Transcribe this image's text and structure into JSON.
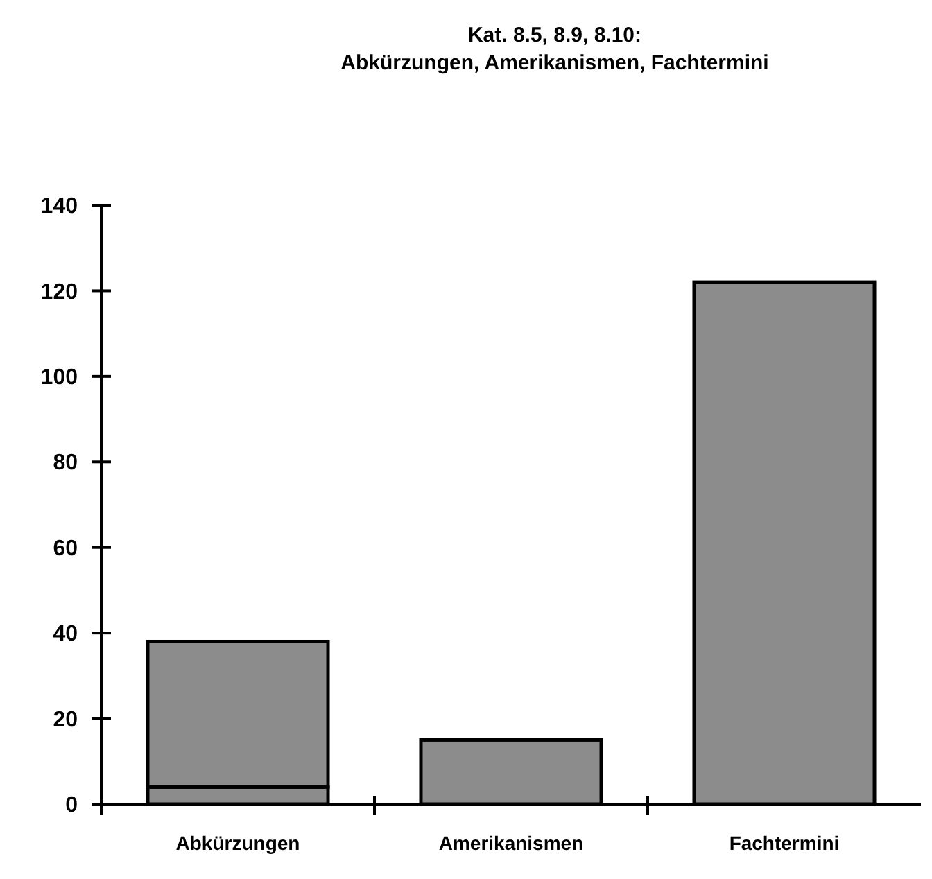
{
  "chart_data": {
    "type": "bar",
    "title": "Kat. 8.5, 8.9, 8.10:\nAbkürzungen, Amerikanismen, Fachtermini",
    "categories": [
      "Abkürzungen",
      "Amerikanismen",
      "Fachtermini"
    ],
    "stacked": true,
    "series": [
      {
        "color": "#8c8c8c",
        "values": [
          4,
          15,
          122
        ]
      },
      {
        "color": "#8c8c8c",
        "values": [
          34,
          null,
          null
        ]
      }
    ],
    "ylim": [
      0,
      140
    ],
    "yticks": [
      0,
      20,
      40,
      60,
      80,
      100,
      120,
      140
    ],
    "grid": false
  }
}
